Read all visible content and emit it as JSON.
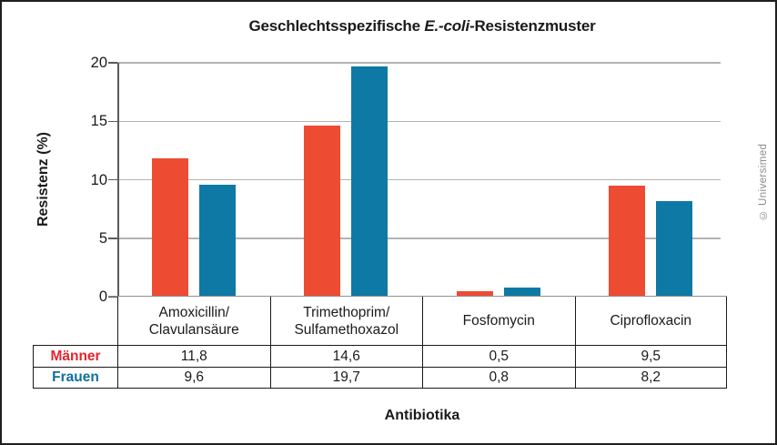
{
  "title": {
    "prefix": "Geschlechtsspezifische ",
    "italic": "E.-coli",
    "suffix": "-Resistenzmuster"
  },
  "credit": "© Universimed",
  "chart_data": {
    "type": "bar",
    "title": "Geschlechtsspezifische E.-coli-Resistenzmuster",
    "ylabel": "Resistenz (%)",
    "xlabel": "Antibiotika",
    "ylim": [
      0,
      20
    ],
    "yticks": [
      0,
      5,
      10,
      15,
      20
    ],
    "grid": "horizontal",
    "legend_position": "table-rows-left",
    "categories": [
      "Amoxicillin/\nClavulansäure",
      "Trimethoprim/\nSulfamethoxazol",
      "Fosfomycin",
      "Ciprofloxacin"
    ],
    "series": [
      {
        "name": "Männer",
        "bar_color": "#ee4b33",
        "label_color": "#e2242e",
        "values": [
          11.8,
          14.6,
          0.5,
          9.5
        ],
        "display_values": [
          "11,8",
          "14,6",
          "0,5",
          "9,5"
        ]
      },
      {
        "name": "Frauen",
        "bar_color": "#0e79a5",
        "label_color": "#0f6f9f",
        "values": [
          9.6,
          19.7,
          0.8,
          8.2
        ],
        "display_values": [
          "9,6",
          "19,7",
          "0,8",
          "8,2"
        ]
      }
    ]
  },
  "colors": {
    "gridline": "#b3b3b3",
    "axis": "#5a5a5a",
    "baseline": "#8f8f8f",
    "table_border": "#1a1a1a",
    "text": "#1a1a1a",
    "credit_text": "#8a8a8a"
  }
}
